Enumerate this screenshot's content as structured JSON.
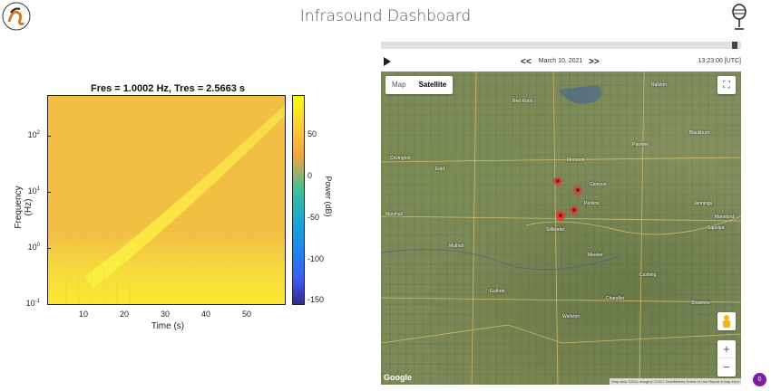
{
  "app": {
    "title": "Infrasound Dashboard"
  },
  "spectrogram": {
    "title": "Fres = 1.0002 Hz, Tres = 2.5663 s",
    "xlabel": "Time (s)",
    "ylabel": "Frequency (Hz)",
    "colorbar_label": "Power (dB)",
    "y_ticks": [
      "10",
      "10",
      "10",
      "10"
    ],
    "y_exponents": [
      "2",
      "1",
      "0",
      "-1"
    ],
    "x_ticks": [
      "10",
      "20",
      "30",
      "40",
      "50"
    ],
    "colorbar_ticks": [
      "50",
      "0",
      "-50",
      "-100",
      "-150"
    ],
    "colormap": [
      "#f9fb0e",
      "#f5a639",
      "#3dbe9c",
      "#1f86f0",
      "#352a87"
    ]
  },
  "player": {
    "play_icon": "play-icon",
    "prev_label": "<<",
    "next_label": ">>",
    "date": "March 10, 2021",
    "time": "13:23:00 [UTC]",
    "progress": 0.99
  },
  "map": {
    "toggle_map": "Map",
    "toggle_satellite": "Satellite",
    "fullscreen_icon": "⛶",
    "zoom_in": "+",
    "zoom_out": "−",
    "google": "Google",
    "attribution": "Map data ©2021 Imagery ©2021 TerraMetrics   Terms of Use   Report a map error",
    "towns": [
      "Red Rock",
      "Ralston",
      "Perkins",
      "Covington",
      "Enid",
      "Morrison",
      "Stillwater",
      "Pawnee",
      "Glencoe",
      "Mulhall",
      "Marshall",
      "Jennings",
      "Blackburn",
      "Mannford",
      "Sapulpa",
      "Cushing",
      "Guthrie",
      "Meeker",
      "Shawnee",
      "Chandler",
      "Wellston"
    ],
    "selected_pin_color": "#e53935",
    "pin_color": "#c0504d"
  },
  "notification_badge": "0"
}
